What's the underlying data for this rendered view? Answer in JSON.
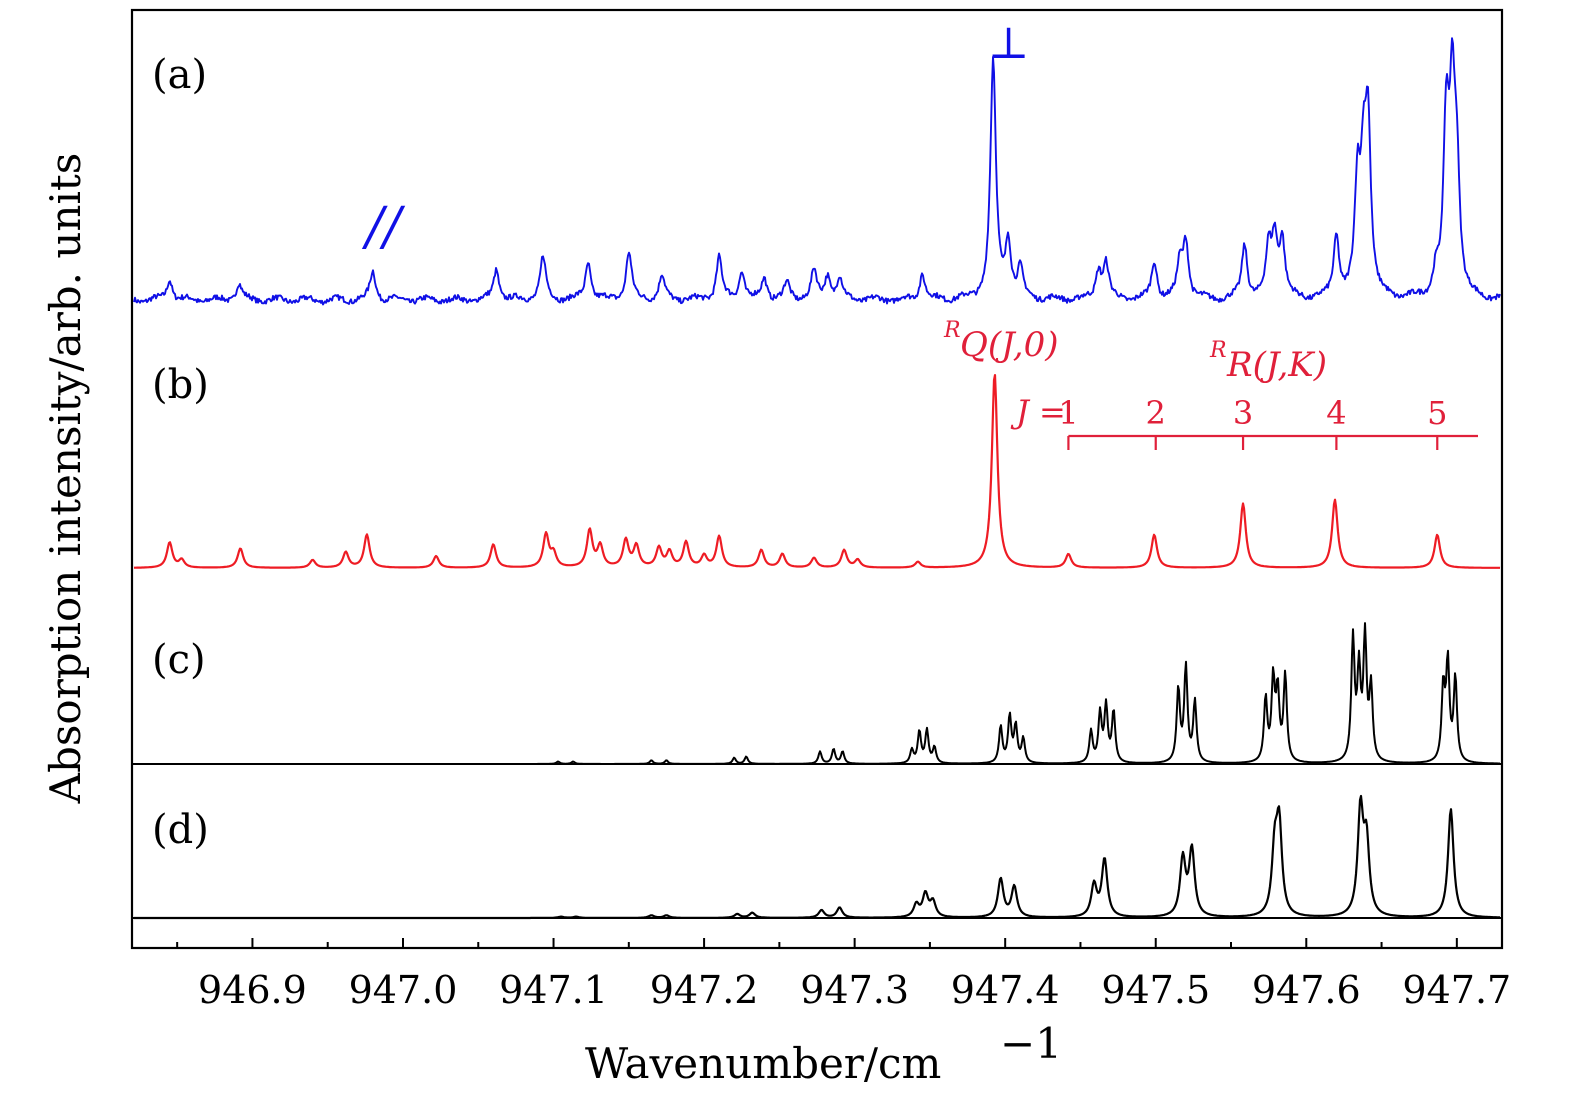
{
  "colors": {
    "a": "#1010e6",
    "b": "#ee1c24",
    "c": "#000000",
    "d": "#000000",
    "annotation": "#e0203a"
  },
  "chart_data": {
    "type": "line",
    "xlabel": "Wavenumber/cm",
    "xlabel_exponent": "−1",
    "ylabel": "Absorption intensity/arb. units",
    "xlim": [
      946.82,
      947.73
    ],
    "ticks": [
      "946.9",
      "947.0",
      "947.1",
      "947.2",
      "947.3",
      "947.4",
      "947.5",
      "947.6",
      "947.7"
    ],
    "tick_values": [
      946.9,
      947.0,
      947.1,
      947.2,
      947.3,
      947.4,
      947.5,
      947.6,
      947.7
    ],
    "panels": [
      {
        "label": "(a)",
        "peaks": [
          [
            946.845,
            0.09
          ],
          [
            946.891,
            0.07
          ],
          [
            946.98,
            0.12
          ],
          [
            947.062,
            0.13
          ],
          [
            947.093,
            0.18
          ],
          [
            947.123,
            0.16
          ],
          [
            947.15,
            0.2
          ],
          [
            947.172,
            0.1
          ],
          [
            947.21,
            0.18
          ],
          [
            947.225,
            0.12
          ],
          [
            947.24,
            0.09
          ],
          [
            947.255,
            0.07
          ],
          [
            947.273,
            0.12
          ],
          [
            947.282,
            0.1
          ],
          [
            947.29,
            0.09
          ],
          [
            947.345,
            0.11
          ],
          [
            947.392,
            1.0
          ],
          [
            947.402,
            0.24
          ],
          [
            947.41,
            0.12
          ],
          [
            947.462,
            0.12
          ],
          [
            947.467,
            0.15
          ],
          [
            947.499,
            0.16
          ],
          [
            947.516,
            0.14
          ],
          [
            947.52,
            0.24
          ],
          [
            947.559,
            0.23
          ],
          [
            947.575,
            0.2
          ],
          [
            947.579,
            0.24
          ],
          [
            947.584,
            0.24
          ],
          [
            947.62,
            0.26
          ],
          [
            947.634,
            0.45
          ],
          [
            947.638,
            0.47
          ],
          [
            947.641,
            0.69
          ],
          [
            947.686,
            0.09
          ],
          [
            947.693,
            0.7
          ],
          [
            947.697,
            0.77
          ],
          [
            947.7,
            0.47
          ]
        ]
      },
      {
        "label": "(b)",
        "peaks": [
          [
            946.845,
            0.13
          ],
          [
            946.853,
            0.04
          ],
          [
            946.892,
            0.1
          ],
          [
            946.94,
            0.04
          ],
          [
            946.962,
            0.08
          ],
          [
            946.976,
            0.17
          ],
          [
            947.022,
            0.06
          ],
          [
            947.06,
            0.12
          ],
          [
            947.095,
            0.17
          ],
          [
            947.1,
            0.07
          ],
          [
            947.124,
            0.19
          ],
          [
            947.131,
            0.11
          ],
          [
            947.148,
            0.14
          ],
          [
            947.155,
            0.11
          ],
          [
            947.17,
            0.1
          ],
          [
            947.177,
            0.08
          ],
          [
            947.188,
            0.13
          ],
          [
            947.2,
            0.06
          ],
          [
            947.21,
            0.16
          ],
          [
            947.238,
            0.09
          ],
          [
            947.252,
            0.07
          ],
          [
            947.273,
            0.05
          ],
          [
            947.293,
            0.09
          ],
          [
            947.302,
            0.04
          ],
          [
            947.342,
            0.03
          ],
          [
            947.393,
            1.0
          ],
          [
            947.442,
            0.07
          ],
          [
            947.499,
            0.17
          ],
          [
            947.558,
            0.33
          ],
          [
            947.619,
            0.35
          ],
          [
            947.687,
            0.17
          ]
        ]
      },
      {
        "label": "(c)",
        "peaks": [
          [
            947.103,
            0.02
          ],
          [
            947.113,
            0.02
          ],
          [
            947.165,
            0.03
          ],
          [
            947.175,
            0.03
          ],
          [
            947.22,
            0.05
          ],
          [
            947.228,
            0.06
          ],
          [
            947.277,
            0.1
          ],
          [
            947.286,
            0.12
          ],
          [
            947.292,
            0.1
          ],
          [
            947.338,
            0.11
          ],
          [
            947.343,
            0.26
          ],
          [
            947.348,
            0.27
          ],
          [
            947.353,
            0.13
          ],
          [
            947.397,
            0.3
          ],
          [
            947.403,
            0.38
          ],
          [
            947.407,
            0.3
          ],
          [
            947.412,
            0.2
          ],
          [
            947.457,
            0.26
          ],
          [
            947.463,
            0.4
          ],
          [
            947.467,
            0.46
          ],
          [
            947.472,
            0.42
          ],
          [
            947.515,
            0.6
          ],
          [
            947.52,
            0.78
          ],
          [
            947.526,
            0.5
          ],
          [
            947.573,
            0.52
          ],
          [
            947.578,
            0.66
          ],
          [
            947.581,
            0.56
          ],
          [
            947.586,
            0.71
          ],
          [
            947.631,
            1.0
          ],
          [
            947.635,
            0.72
          ],
          [
            947.639,
            1.0
          ],
          [
            947.643,
            0.6
          ],
          [
            947.691,
            0.6
          ],
          [
            947.694,
            0.8
          ],
          [
            947.699,
            0.69
          ]
        ]
      },
      {
        "label": "(d)",
        "peaks": [
          [
            947.105,
            0.01
          ],
          [
            947.115,
            0.01
          ],
          [
            947.165,
            0.02
          ],
          [
            947.175,
            0.02
          ],
          [
            947.222,
            0.03
          ],
          [
            947.232,
            0.04
          ],
          [
            947.278,
            0.06
          ],
          [
            947.29,
            0.08
          ],
          [
            947.341,
            0.1
          ],
          [
            947.347,
            0.18
          ],
          [
            947.352,
            0.12
          ],
          [
            947.397,
            0.3
          ],
          [
            947.406,
            0.24
          ],
          [
            947.459,
            0.25
          ],
          [
            947.466,
            0.45
          ],
          [
            947.518,
            0.45
          ],
          [
            947.524,
            0.52
          ],
          [
            947.579,
            0.49
          ],
          [
            947.582,
            0.69
          ],
          [
            947.636,
            0.82
          ],
          [
            947.64,
            0.56
          ],
          [
            947.696,
            0.85
          ]
        ]
      }
    ],
    "annotations": {
      "perp_symbol": "⊥",
      "parallel_symbol": "//",
      "rq_sup": "R",
      "rq_text": "Q(J,0)",
      "rr_sup": "R",
      "rr_text": "R(J,K)",
      "j_prefix": "J =",
      "j_labels": [
        "1",
        "2",
        "3",
        "4",
        "5"
      ],
      "j_positions": [
        947.442,
        947.5,
        947.558,
        947.62,
        947.687
      ]
    }
  }
}
